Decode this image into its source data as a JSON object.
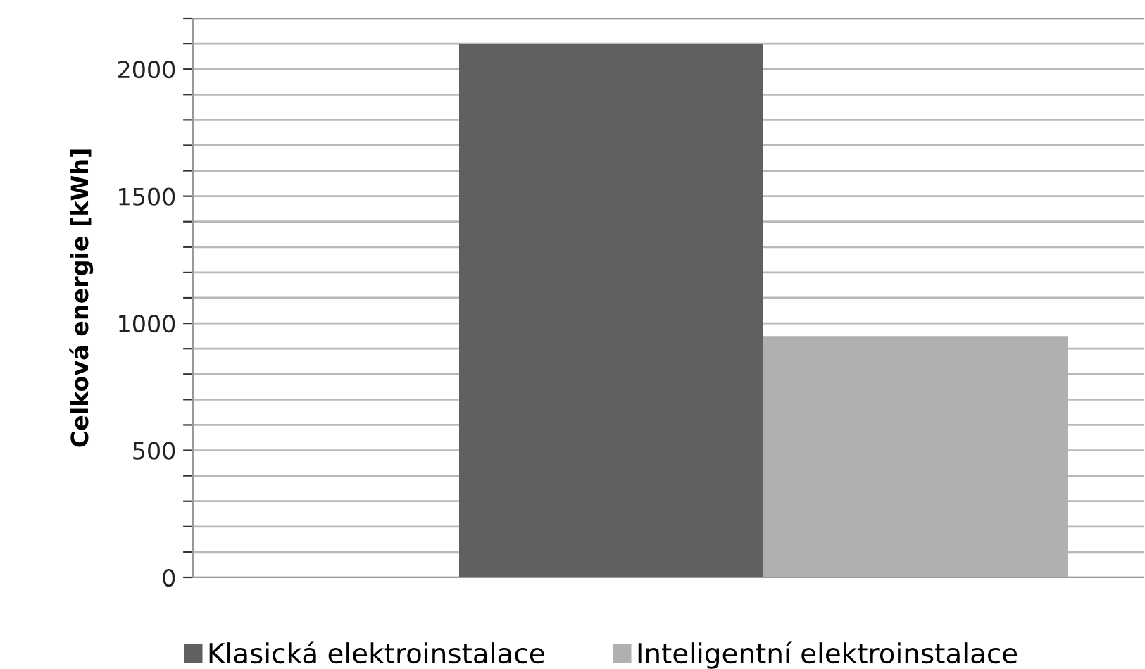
{
  "chart_data": {
    "type": "bar",
    "ylabel": "Celková energie [kWh]",
    "categories": [
      null
    ],
    "series": [
      {
        "name": "Klasická elektroinstalace",
        "color": "#606060",
        "values": [
          2100
        ]
      },
      {
        "name": "Inteligentní elektroinstalace",
        "color": "#b0b0b0",
        "values": [
          950
        ]
      }
    ],
    "ylim": [
      0,
      2200
    ],
    "yticks": [
      0,
      {
        "value": 100,
        "label": null
      },
      {
        "value": 200,
        "label": null
      },
      {
        "value": 300,
        "label": null
      },
      {
        "value": 400,
        "label": null
      },
      500,
      {
        "value": 600,
        "label": null
      },
      {
        "value": 700,
        "label": null
      },
      {
        "value": 800,
        "label": null
      },
      {
        "value": 900,
        "label": null
      },
      1000,
      {
        "value": 1100,
        "label": null
      },
      {
        "value": 1200,
        "label": null
      },
      {
        "value": 1300,
        "label": null
      },
      {
        "value": 1400,
        "label": null
      },
      1500,
      {
        "value": 1600,
        "label": null
      },
      {
        "value": 1700,
        "label": null
      },
      {
        "value": 1800,
        "label": null
      },
      {
        "value": 1900,
        "label": null
      },
      2000,
      {
        "value": 2100,
        "label": null
      },
      {
        "value": 2200,
        "label": null
      }
    ],
    "grid": "y",
    "legend": "bottom"
  }
}
